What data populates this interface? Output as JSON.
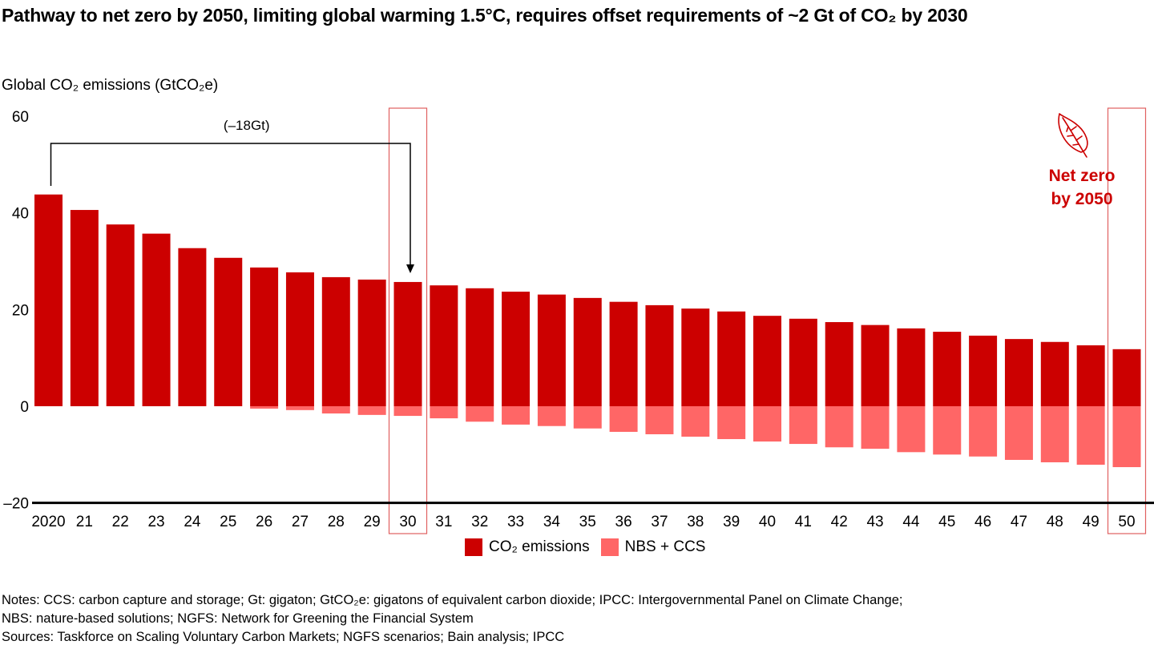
{
  "colors": {
    "co2": "#cc0000",
    "nbs": "#ff6666",
    "highlight_box": "#e06060",
    "netzero_text": "#cc0000"
  },
  "title": "Pathway to net zero by 2050, limiting global warming 1.5°C, requires offset requirements of ~2 Gt of CO₂ by 2030",
  "annotation": {
    "bracket_label": "(–18Gt)",
    "netzero_line1": "Net zero",
    "netzero_line2": "by 2050",
    "netzero_icon": "leaf-icon"
  },
  "notes": {
    "line1": "Notes: CCS: carbon capture and storage; Gt: gigaton; GtCO₂e: gigatons of equivalent carbon dioxide; IPCC: Intergovernmental Panel on Climate Change;",
    "line2": "NBS: nature-based solutions; NGFS: Network for Greening the Financial System",
    "line3": "Sources: Taskforce on Scaling Voluntary Carbon Markets; NGFS scenarios; Bain analysis; IPCC"
  },
  "chart_data": {
    "type": "bar",
    "stacked": true,
    "title": "Pathway to net zero by 2050, limiting global warming 1.5°C, requires offset requirements of ~2 Gt of CO₂ by 2030",
    "xlabel": "",
    "ylabel": "Global CO₂ emissions (GtCO₂e)",
    "ylim": [
      -20,
      60
    ],
    "yticks": [
      60,
      40,
      20,
      0,
      -20
    ],
    "ytick_labels": [
      "60",
      "40",
      "20",
      "0",
      "–20"
    ],
    "grid": false,
    "legend_position": "bottom-center",
    "categories": [
      "2020",
      "21",
      "22",
      "23",
      "24",
      "25",
      "26",
      "27",
      "28",
      "29",
      "30",
      "31",
      "32",
      "33",
      "34",
      "35",
      "36",
      "37",
      "38",
      "39",
      "40",
      "41",
      "42",
      "43",
      "44",
      "45",
      "46",
      "47",
      "48",
      "49",
      "50"
    ],
    "highlighted_categories": [
      "30",
      "50"
    ],
    "series": [
      {
        "name": "CO₂ emissions",
        "values": [
          43.8,
          40.6,
          37.6,
          35.7,
          32.7,
          30.7,
          28.7,
          27.7,
          26.7,
          26.2,
          25.7,
          25.0,
          24.4,
          23.7,
          23.1,
          22.4,
          21.6,
          20.9,
          20.2,
          19.6,
          18.7,
          18.1,
          17.4,
          16.8,
          16.1,
          15.4,
          14.6,
          13.9,
          13.3,
          12.6,
          11.8
        ]
      },
      {
        "name": "NBS + CCS",
        "values": [
          0,
          0,
          0,
          0,
          0,
          0,
          -0.5,
          -0.8,
          -1.5,
          -1.8,
          -2.0,
          -2.5,
          -3.2,
          -3.8,
          -4.1,
          -4.6,
          -5.3,
          -5.8,
          -6.3,
          -6.8,
          -7.3,
          -7.8,
          -8.5,
          -8.8,
          -9.5,
          -10.0,
          -10.4,
          -11.1,
          -11.6,
          -12.1,
          -12.6
        ]
      }
    ],
    "annotations": [
      {
        "type": "bracket-arrow",
        "from": "2020",
        "to": "30",
        "label": "(–18Gt)"
      },
      {
        "type": "text",
        "near": "50",
        "label": "Net zero by 2050"
      }
    ]
  }
}
